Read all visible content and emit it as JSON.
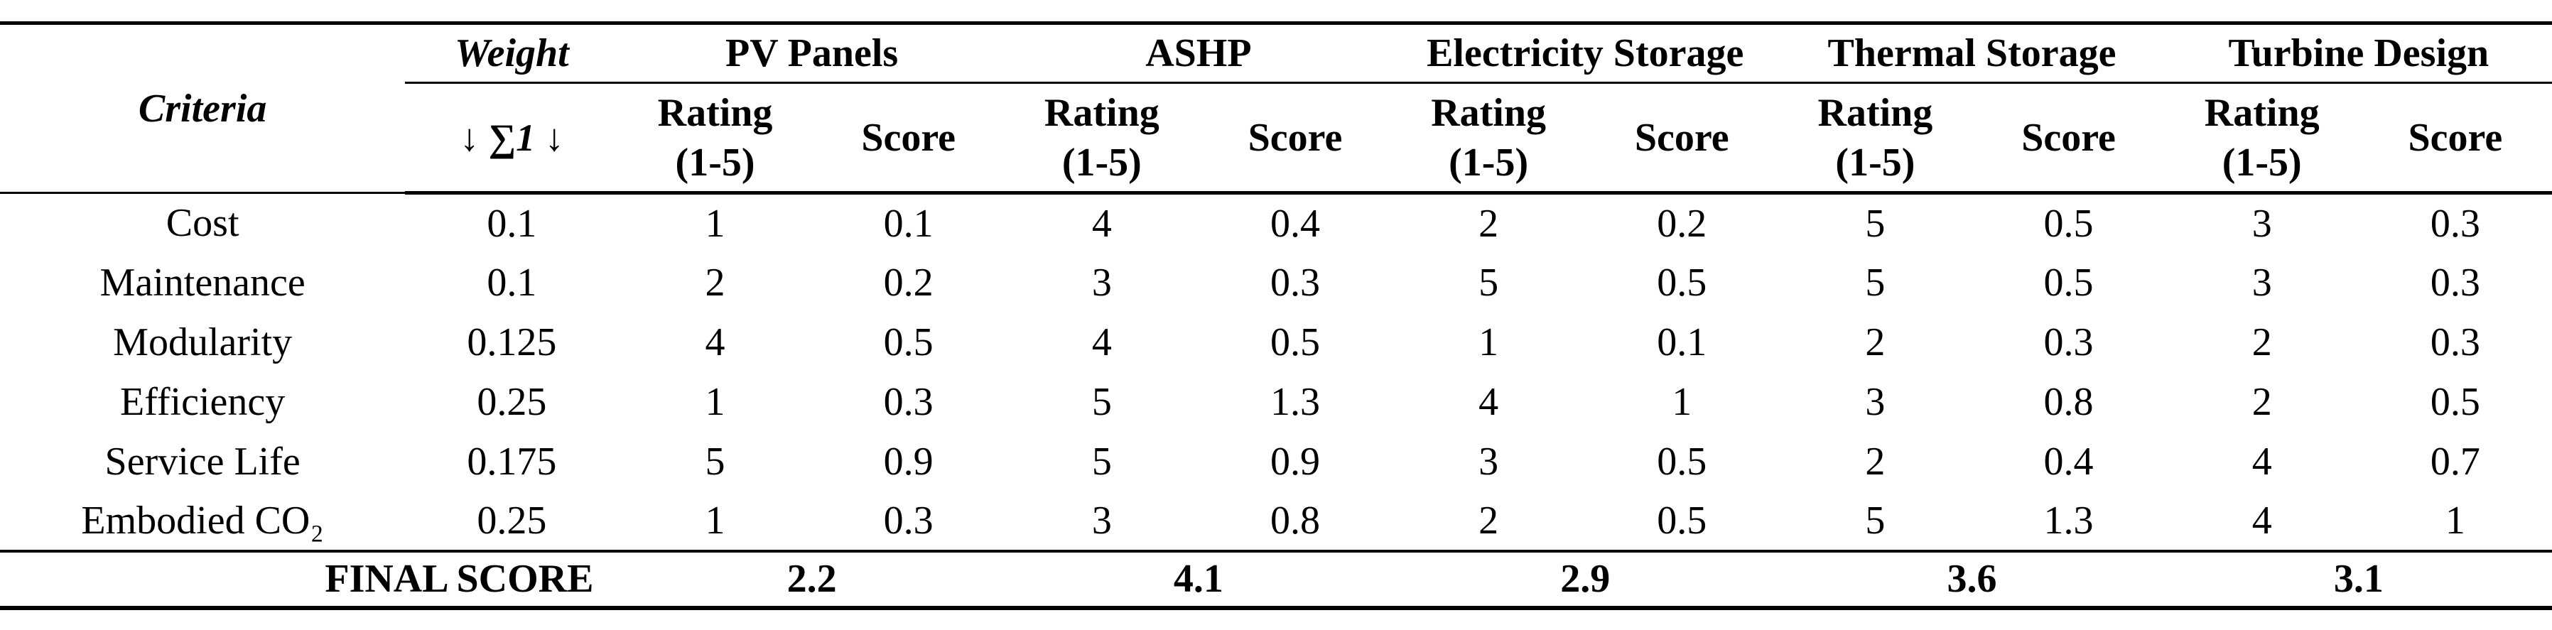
{
  "table": {
    "columns": {
      "criteria_label": "Criteria",
      "weight_label": "Weight",
      "weight_sub_label": "↓ ∑1 ↓",
      "groups": [
        "PV Panels",
        "ASHP",
        "Electricity Storage",
        "Thermal Storage",
        "Turbine Design"
      ],
      "rating_label": "Rating",
      "rating_range": "(1-5)",
      "score_label": "Score"
    },
    "rows": [
      {
        "criteria": "Cost",
        "weight": "0.1",
        "pv_rating": "1",
        "pv_score": "0.1",
        "ashp_rating": "4",
        "ashp_score": "0.4",
        "es_rating": "2",
        "es_score": "0.2",
        "ts_rating": "5",
        "ts_score": "0.5",
        "td_rating": "3",
        "td_score": "0.3"
      },
      {
        "criteria": "Maintenance",
        "weight": "0.1",
        "pv_rating": "2",
        "pv_score": "0.2",
        "ashp_rating": "3",
        "ashp_score": "0.3",
        "es_rating": "5",
        "es_score": "0.5",
        "ts_rating": "5",
        "ts_score": "0.5",
        "td_rating": "3",
        "td_score": "0.3"
      },
      {
        "criteria": "Modularity",
        "weight": "0.125",
        "pv_rating": "4",
        "pv_score": "0.5",
        "ashp_rating": "4",
        "ashp_score": "0.5",
        "es_rating": "1",
        "es_score": "0.1",
        "ts_rating": "2",
        "ts_score": "0.3",
        "td_rating": "2",
        "td_score": "0.3"
      },
      {
        "criteria": "Efficiency",
        "weight": "0.25",
        "pv_rating": "1",
        "pv_score": "0.3",
        "ashp_rating": "5",
        "ashp_score": "1.3",
        "es_rating": "4",
        "es_score": "1",
        "ts_rating": "3",
        "ts_score": "0.8",
        "td_rating": "2",
        "td_score": "0.5"
      },
      {
        "criteria": "Service Life",
        "weight": "0.175",
        "pv_rating": "5",
        "pv_score": "0.9",
        "ashp_rating": "5",
        "ashp_score": "0.9",
        "es_rating": "3",
        "es_score": "0.5",
        "ts_rating": "2",
        "ts_score": "0.4",
        "td_rating": "4",
        "td_score": "0.7"
      },
      {
        "criteria": "Embodied CO₂",
        "weight": "0.25",
        "pv_rating": "1",
        "pv_score": "0.3",
        "ashp_rating": "3",
        "ashp_score": "0.8",
        "es_rating": "2",
        "es_score": "0.5",
        "ts_rating": "5",
        "ts_score": "1.3",
        "td_rating": "4",
        "td_score": "1"
      }
    ],
    "footer": {
      "label": "FINAL SCORE",
      "scores": [
        "2.2",
        "4.1",
        "2.9",
        "3.6",
        "3.1"
      ]
    }
  }
}
